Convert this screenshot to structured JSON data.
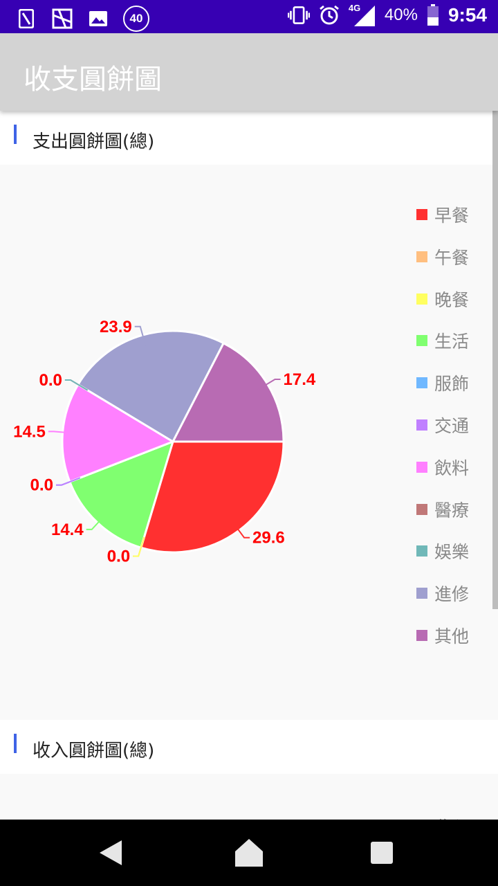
{
  "status_bar": {
    "battery_text": "40%",
    "network_text": "4G",
    "time": "9:54",
    "notification_badge": "40",
    "icons": [
      "sim-icon",
      "app-icon",
      "image-icon",
      "badge-icon",
      "vibrate-icon",
      "alarm-icon",
      "signal-icon",
      "battery-icon"
    ]
  },
  "app_bar": {
    "title": "收支圓餅圖"
  },
  "expense_section": {
    "title": "支出圓餅圖(總)"
  },
  "income_section": {
    "title": "收入圓餅圖(總)"
  },
  "chart_data": [
    {
      "type": "pie",
      "title": "",
      "categories": [
        "早餐",
        "午餐",
        "晚餐",
        "生活",
        "服飾",
        "交通",
        "飲料",
        "醫療",
        "娛樂",
        "進修",
        "其他"
      ],
      "values": [
        29.6,
        0.0,
        0.0,
        14.4,
        0.0,
        0.0,
        14.5,
        0.0,
        0.0,
        23.9,
        17.4
      ],
      "value_labels": [
        "29.6",
        "0.0",
        "0.0",
        "14.4",
        "0.0",
        "0.0",
        "14.5",
        "0.0",
        "0.0",
        "23.9",
        "17.4"
      ],
      "colors": [
        "#ff3030",
        "#ffbf80",
        "#ffff60",
        "#80ff70",
        "#70b8ff",
        "#c080ff",
        "#ff80ff",
        "#c07878",
        "#70b8b8",
        "#9f9fcf",
        "#b86bb3"
      ],
      "legend_position": "right",
      "label_color": "#ff0000"
    }
  ],
  "income_legend_partial": "收入",
  "nav": {
    "icons": [
      "back-icon",
      "home-icon",
      "recents-icon"
    ]
  }
}
